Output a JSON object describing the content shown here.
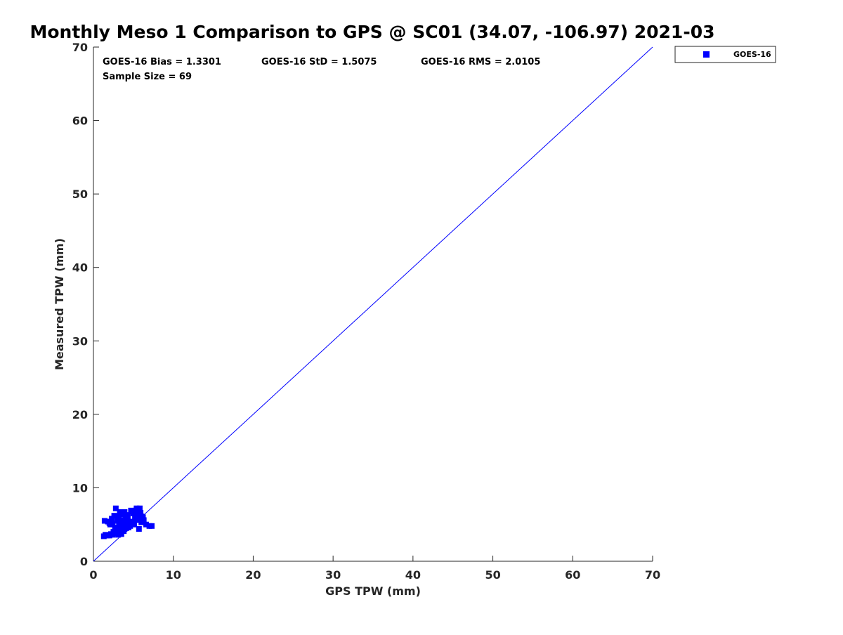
{
  "chart_data": {
    "type": "scatter",
    "title": "Monthly Meso 1 Comparison to GPS @ SC01 (34.07, -106.97) 2021-03",
    "xlabel": "GPS TPW (mm)",
    "ylabel": "Measured TPW (mm)",
    "xlim": [
      0,
      70
    ],
    "ylim": [
      0,
      70
    ],
    "xticks": [
      "0",
      "10",
      "20",
      "30",
      "40",
      "50",
      "60",
      "70"
    ],
    "yticks": [
      "0",
      "10",
      "20",
      "30",
      "40",
      "50",
      "60",
      "70"
    ],
    "grid": false,
    "legend_position": "outside-top-right",
    "stats": {
      "bias": "GOES-16 Bias = 1.3301",
      "std": "GOES-16 StD = 1.5075",
      "rms": "GOES-16 RMS = 2.0105",
      "sample_size": "Sample Size = 69"
    },
    "reference_line": {
      "x": [
        0,
        70
      ],
      "y": [
        0,
        70
      ],
      "color": "#0000ff"
    },
    "series": [
      {
        "name": "GOES-16",
        "color": "#0000ff",
        "marker": "square",
        "points": [
          [
            1.3,
            3.4
          ],
          [
            1.5,
            3.6
          ],
          [
            1.4,
            5.5
          ],
          [
            1.8,
            5.4
          ],
          [
            2.0,
            3.5
          ],
          [
            2.1,
            5.0
          ],
          [
            2.2,
            3.7
          ],
          [
            2.3,
            5.8
          ],
          [
            2.4,
            3.6
          ],
          [
            2.4,
            5.1
          ],
          [
            2.6,
            6.2
          ],
          [
            2.7,
            3.9
          ],
          [
            2.8,
            7.2
          ],
          [
            2.9,
            3.8
          ],
          [
            3.0,
            5.5
          ],
          [
            3.1,
            3.6
          ],
          [
            3.2,
            6.0
          ],
          [
            3.3,
            4.3
          ],
          [
            3.4,
            6.7
          ],
          [
            3.5,
            5.1
          ],
          [
            3.5,
            3.7
          ],
          [
            3.6,
            4.7
          ],
          [
            3.7,
            6.4
          ],
          [
            3.8,
            4.1
          ],
          [
            3.9,
            6.7
          ],
          [
            4.0,
            5.8
          ],
          [
            4.1,
            4.5
          ],
          [
            4.2,
            5.3
          ],
          [
            4.3,
            6.1
          ],
          [
            4.4,
            4.6
          ],
          [
            4.6,
            4.8
          ],
          [
            4.8,
            6.8
          ],
          [
            5.0,
            6.5
          ],
          [
            5.1,
            5.0
          ],
          [
            5.3,
            6.9
          ],
          [
            5.4,
            7.2
          ],
          [
            5.5,
            6.2
          ],
          [
            5.6,
            5.8
          ],
          [
            5.7,
            4.4
          ],
          [
            5.8,
            7.2
          ],
          [
            5.9,
            6.6
          ],
          [
            6.0,
            6.1
          ],
          [
            6.1,
            5.7
          ],
          [
            6.3,
            5.6
          ],
          [
            6.6,
            5.0
          ],
          [
            7.0,
            4.8
          ],
          [
            7.3,
            4.8
          ],
          [
            2.5,
            4.0
          ],
          [
            3.2,
            4.9
          ],
          [
            3.6,
            5.6
          ],
          [
            4.1,
            6.3
          ],
          [
            4.6,
            5.4
          ],
          [
            5.2,
            5.9
          ],
          [
            5.5,
            6.8
          ],
          [
            2.0,
            5.2
          ],
          [
            2.7,
            4.6
          ],
          [
            3.3,
            6.5
          ],
          [
            3.8,
            5.2
          ],
          [
            4.4,
            4.9
          ],
          [
            4.9,
            5.3
          ],
          [
            5.7,
            6.4
          ],
          [
            6.2,
            6.0
          ],
          [
            1.7,
            3.5
          ],
          [
            2.9,
            4.2
          ],
          [
            3.9,
            4.4
          ],
          [
            4.7,
            6.9
          ],
          [
            5.4,
            5.6
          ],
          [
            6.0,
            5.3
          ],
          [
            3.4,
            4.0
          ]
        ]
      }
    ]
  }
}
